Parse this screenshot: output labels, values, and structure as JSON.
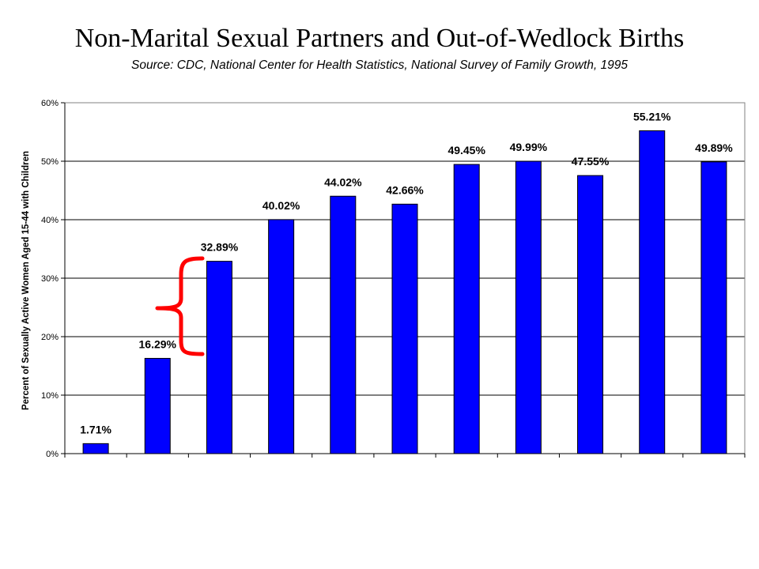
{
  "chart_data": {
    "type": "bar",
    "title": "Non-Marital Sexual Partners and Out-of-Wedlock Births",
    "subtitle": "Source: CDC, National Center for Health Statistics, National Survey of Family Growth, 1995",
    "xlabel": "",
    "ylabel": "Percent of Sexually Active Women Aged 15-44 with Children",
    "categories": [
      "",
      "",
      "",
      "",
      "",
      "",
      "",
      "",
      "",
      "",
      ""
    ],
    "values": [
      1.71,
      16.29,
      32.89,
      40.02,
      44.02,
      42.66,
      49.45,
      49.99,
      47.55,
      55.21,
      49.89
    ],
    "data_labels": [
      "1.71%",
      "16.29%",
      "32.89%",
      "40.02%",
      "44.02%",
      "42.66%",
      "49.45%",
      "49.99%",
      "47.55%",
      "55.21%",
      "49.89%"
    ],
    "ylim": [
      0,
      60
    ],
    "yticks": [
      0,
      10,
      20,
      30,
      40,
      50,
      60
    ],
    "ytick_labels": [
      "0%",
      "10%",
      "20%",
      "30%",
      "40%",
      "50%",
      "60%"
    ],
    "grid": true,
    "legend": "none",
    "annotation": "red curly brace spanning the 16.29% and 32.89% bars",
    "colors": {
      "bar_fill": "#0000ff",
      "bar_stroke": "#000000",
      "brace": "#ff0000",
      "grid": "#000000"
    }
  }
}
